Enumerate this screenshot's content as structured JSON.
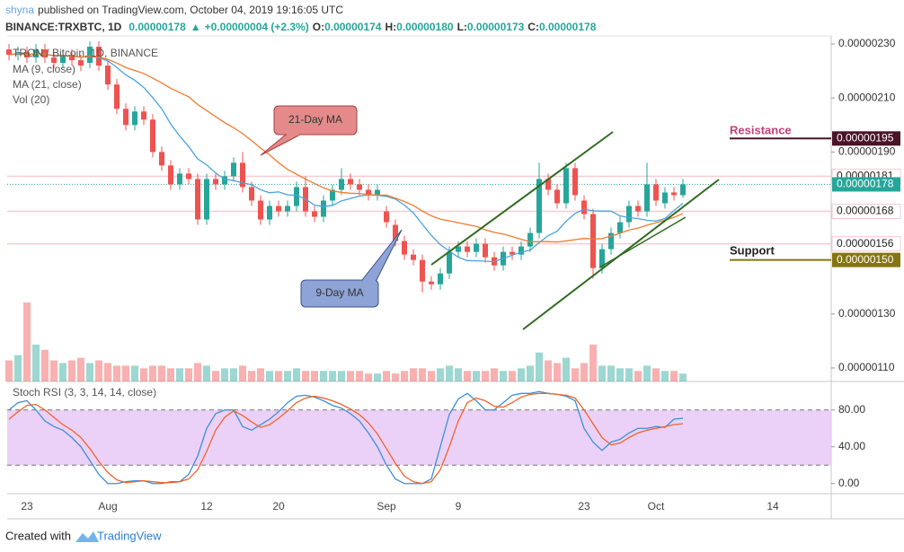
{
  "header": {
    "publisher": "shyna",
    "published": "published on TradingView.com, October 04, 2019 19:16:05 UTC",
    "symbol": "BINANCE:TRXBTC, 1D",
    "last": "0.00000178",
    "arrow": "▲",
    "change": "+0.00000004 (+2.3%)",
    "o_label": "O:",
    "o": "0.00000174",
    "h_label": "H:",
    "h": "0.00000180",
    "l_label": "L:",
    "l": "0.00000173",
    "c_label": "C:",
    "c": "0.00000178"
  },
  "footer": {
    "created": "Created with",
    "brand": "TradingView"
  },
  "chart_data": [
    {
      "type": "candlestick",
      "title": "TRON / Bitcoin, 1D, BINANCE",
      "up_color": "#26a69a",
      "down_color": "#ef5350",
      "categories": [
        null,
        null,
        "23",
        null,
        null,
        null,
        null,
        null,
        null,
        null,
        null,
        "Aug",
        null,
        null,
        null,
        null,
        null,
        null,
        null,
        null,
        null,
        null,
        "12",
        null,
        null,
        null,
        null,
        null,
        null,
        null,
        "20",
        null,
        null,
        null,
        null,
        null,
        null,
        null,
        null,
        null,
        null,
        null,
        "Sep",
        null,
        null,
        null,
        null,
        null,
        null,
        null,
        "9",
        null,
        null,
        null,
        null,
        null,
        null,
        null,
        null,
        null,
        null,
        null,
        null,
        null,
        "23",
        null,
        null,
        null,
        null,
        null,
        null,
        null,
        "Oct",
        null,
        null,
        null,
        null,
        null,
        null,
        null,
        null,
        null,
        null,
        null,
        null,
        "14"
      ],
      "open": [
        2.28e-06,
        2.26e-06,
        2.27e-06,
        2.25e-06,
        2.28e-06,
        2.25e-06,
        2.23e-06,
        2.26e-06,
        2.24e-06,
        2.23e-06,
        2.29e-06,
        2.22e-06,
        2.15e-06,
        2.06e-06,
        2e-06,
        2.05e-06,
        2.02e-06,
        1.9e-06,
        1.85e-06,
        1.78e-06,
        1.82e-06,
        1.8e-06,
        1.65e-06,
        1.8e-06,
        1.78e-06,
        1.81e-06,
        1.86e-06,
        1.77e-06,
        1.72e-06,
        1.65e-06,
        1.7e-06,
        1.68e-06,
        1.7e-06,
        1.77e-06,
        1.68e-06,
        1.66e-06,
        1.72e-06,
        1.76e-06,
        1.8e-06,
        1.78e-06,
        1.76e-06,
        1.74e-06,
        1.68e-06,
        1.63e-06,
        1.57e-06,
        1.52e-06,
        1.5e-06,
        1.42e-06,
        1.41e-06,
        1.45e-06,
        1.53e-06,
        1.55e-06,
        1.53e-06,
        1.56e-06,
        1.51e-06,
        1.48e-06,
        1.53e-06,
        1.52e-06,
        1.55e-06,
        1.6e-06,
        1.8e-06,
        1.76e-06,
        1.71e-06,
        1.84e-06,
        1.72e-06,
        1.67e-06,
        1.47e-06,
        1.54e-06,
        1.6e-06,
        1.64e-06,
        1.7e-06,
        1.68e-06,
        1.78e-06,
        1.71e-06,
        1.75e-06,
        1.74e-06,
        null,
        null,
        null,
        null,
        null,
        null,
        null,
        null,
        null,
        null
      ],
      "high": [
        2.3e-06,
        2.29e-06,
        2.29e-06,
        2.3e-06,
        2.3e-06,
        2.27e-06,
        2.28e-06,
        2.28e-06,
        2.26e-06,
        2.31e-06,
        2.31e-06,
        2.24e-06,
        2.17e-06,
        2.08e-06,
        2.07e-06,
        2.07e-06,
        2.04e-06,
        1.92e-06,
        1.87e-06,
        1.84e-06,
        1.84e-06,
        1.82e-06,
        1.82e-06,
        1.82e-06,
        1.83e-06,
        1.88e-06,
        1.9e-06,
        1.79e-06,
        1.74e-06,
        1.72e-06,
        1.72e-06,
        1.72e-06,
        1.79e-06,
        1.81e-06,
        1.7e-06,
        1.74e-06,
        1.78e-06,
        1.84e-06,
        1.82e-06,
        1.8e-06,
        1.78e-06,
        1.78e-06,
        1.7e-06,
        1.65e-06,
        1.59e-06,
        1.54e-06,
        1.52e-06,
        1.44e-06,
        1.47e-06,
        1.55e-06,
        1.57e-06,
        1.57e-06,
        1.58e-06,
        1.58e-06,
        1.53e-06,
        1.55e-06,
        1.55e-06,
        1.57e-06,
        1.62e-06,
        1.86e-06,
        1.82e-06,
        1.78e-06,
        1.86e-06,
        1.86e-06,
        1.74e-06,
        1.69e-06,
        1.56e-06,
        1.62e-06,
        1.66e-06,
        1.72e-06,
        1.72e-06,
        1.86e-06,
        1.8e-06,
        1.77e-06,
        1.77e-06,
        1.8e-06,
        null,
        null,
        null,
        null,
        null,
        null,
        null,
        null,
        null,
        null
      ],
      "low": [
        2.24e-06,
        2.24e-06,
        2.23e-06,
        2.23e-06,
        2.23e-06,
        2.21e-06,
        2.21e-06,
        2.22e-06,
        2.2e-06,
        2.21e-06,
        2.2e-06,
        2.13e-06,
        2.04e-06,
        1.98e-06,
        1.98e-06,
        2e-06,
        1.88e-06,
        1.83e-06,
        1.76e-06,
        1.76e-06,
        1.78e-06,
        1.63e-06,
        1.63e-06,
        1.76e-06,
        1.76e-06,
        1.79e-06,
        1.75e-06,
        1.7e-06,
        1.63e-06,
        1.63e-06,
        1.66e-06,
        1.66e-06,
        1.68e-06,
        1.66e-06,
        1.64e-06,
        1.64e-06,
        1.7e-06,
        1.74e-06,
        1.76e-06,
        1.74e-06,
        1.72e-06,
        1.72e-06,
        1.62e-06,
        1.55e-06,
        1.5e-06,
        1.48e-06,
        1.38e-06,
        1.39e-06,
        1.39e-06,
        1.43e-06,
        1.51e-06,
        1.51e-06,
        1.51e-06,
        1.49e-06,
        1.46e-06,
        1.46e-06,
        1.5e-06,
        1.5e-06,
        1.53e-06,
        1.58e-06,
        1.74e-06,
        1.69e-06,
        1.69e-06,
        1.72e-06,
        1.65e-06,
        1.43e-06,
        1.45e-06,
        1.52e-06,
        1.58e-06,
        1.62e-06,
        1.66e-06,
        1.66e-06,
        1.7e-06,
        1.69e-06,
        1.72e-06,
        1.73e-06,
        null,
        null,
        null,
        null,
        null,
        null,
        null,
        null,
        null,
        null
      ],
      "close": [
        2.26e-06,
        2.27e-06,
        2.25e-06,
        2.28e-06,
        2.25e-06,
        2.23e-06,
        2.26e-06,
        2.24e-06,
        2.22e-06,
        2.29e-06,
        2.22e-06,
        2.15e-06,
        2.06e-06,
        2e-06,
        2.05e-06,
        2.02e-06,
        1.9e-06,
        1.85e-06,
        1.78e-06,
        1.82e-06,
        1.8e-06,
        1.65e-06,
        1.8e-06,
        1.78e-06,
        1.81e-06,
        1.86e-06,
        1.77e-06,
        1.72e-06,
        1.65e-06,
        1.7e-06,
        1.68e-06,
        1.7e-06,
        1.77e-06,
        1.68e-06,
        1.66e-06,
        1.72e-06,
        1.76e-06,
        1.8e-06,
        1.78e-06,
        1.76e-06,
        1.74e-06,
        1.76e-06,
        1.64e-06,
        1.57e-06,
        1.52e-06,
        1.5e-06,
        1.42e-06,
        1.41e-06,
        1.45e-06,
        1.53e-06,
        1.55e-06,
        1.53e-06,
        1.56e-06,
        1.51e-06,
        1.48e-06,
        1.53e-06,
        1.52e-06,
        1.55e-06,
        1.6e-06,
        1.8e-06,
        1.76e-06,
        1.71e-06,
        1.84e-06,
        1.74e-06,
        1.67e-06,
        1.47e-06,
        1.54e-06,
        1.6e-06,
        1.64e-06,
        1.7e-06,
        1.68e-06,
        1.78e-06,
        1.72e-06,
        1.75e-06,
        1.74e-06,
        1.78e-06,
        null,
        null,
        null,
        null,
        null,
        null,
        null,
        null,
        null,
        null
      ],
      "volume": [
        8,
        10,
        30,
        14,
        12,
        8,
        7,
        8,
        9,
        7,
        8,
        7,
        6,
        6,
        6,
        5,
        6,
        6,
        5,
        5,
        5,
        7,
        6,
        4,
        5,
        5,
        6,
        4,
        5,
        4,
        4,
        4,
        5,
        4,
        4,
        4,
        4,
        4,
        4,
        4,
        3,
        3,
        4,
        3,
        4,
        5,
        5,
        4,
        5,
        6,
        5,
        4,
        4,
        4,
        5,
        4,
        4,
        5,
        6,
        11,
        8,
        7,
        9,
        5,
        7,
        14,
        6,
        6,
        5,
        5,
        4,
        6,
        5,
        4,
        4,
        3,
        null,
        null,
        null,
        null,
        null,
        null,
        null,
        null,
        null,
        null
      ],
      "volume_label": "Vol (20)",
      "ma": [
        {
          "name": "MA (9, close)",
          "period": 9,
          "color": "#4aa3df"
        },
        {
          "name": "MA (21, close)",
          "period": 21,
          "color": "#f07a30"
        }
      ],
      "ylim": [
        1.05e-06,
        2.33e-06
      ],
      "yticks": [
        {
          "value": 2.3e-06,
          "label": "0.00000230"
        },
        {
          "value": 2.1e-06,
          "label": "0.00000210"
        },
        {
          "value": 1.9e-06,
          "label": "0.00000190"
        },
        {
          "value": 1.3e-06,
          "label": "0.00000130"
        },
        {
          "value": 1.1e-06,
          "label": "0.00000110"
        }
      ],
      "price_lines": [
        {
          "value": 1.95e-06,
          "label": "0.00000195",
          "color": "#4a1328",
          "text_color": "#ffffff",
          "line": "short"
        },
        {
          "value": 1.81e-06,
          "label": "0.00000181",
          "color": "#f6cbd1",
          "text_color": "#222222",
          "line": "full"
        },
        {
          "value": 1.78e-06,
          "label": "0.00000178",
          "color": "#26a69a",
          "text_color": "#ffffff",
          "line": "dotted"
        },
        {
          "value": 1.68e-06,
          "label": "0.00000168",
          "color": "#f6cbd1",
          "text_color": "#222222",
          "line": "full"
        },
        {
          "value": 1.56e-06,
          "label": "0.00000156",
          "color": "#f6cbd1",
          "text_color": "#222222",
          "line": "full"
        },
        {
          "value": 1.5e-06,
          "label": "0.00000150",
          "color": "#857511",
          "text_color": "#ffffff",
          "line": "short"
        }
      ],
      "annotations": [
        "21-Day MA",
        "9-Day MA",
        "Resistance",
        "Support"
      ]
    },
    {
      "type": "line",
      "title": "Stoch RSI (3, 3, 14, 14, close)",
      "band": [
        20,
        80
      ],
      "band_color": "#e6c6f5",
      "series": [
        {
          "color": "#3d8fd6",
          "values": [
            80,
            88,
            90,
            80,
            68,
            62,
            58,
            50,
            40,
            25,
            10,
            0,
            0,
            2,
            3,
            3,
            0,
            0,
            2,
            2,
            10,
            30,
            60,
            76,
            80,
            80,
            62,
            58,
            64,
            70,
            78,
            88,
            95,
            96,
            94,
            90,
            85,
            82,
            76,
            68,
            55,
            40,
            20,
            5,
            0,
            0,
            0,
            5,
            40,
            75,
            92,
            98,
            90,
            80,
            80,
            88,
            96,
            98,
            98,
            100,
            98,
            97,
            95,
            90,
            60,
            45,
            36,
            45,
            48,
            55,
            60,
            60,
            62,
            61,
            70,
            71,
            null,
            null,
            null,
            null,
            null,
            null,
            null,
            null,
            null,
            null
          ]
        },
        {
          "color": "#f0642d",
          "values": [
            70,
            78,
            85,
            86,
            80,
            72,
            64,
            58,
            50,
            38,
            24,
            12,
            4,
            1,
            2,
            3,
            2,
            1,
            1,
            2,
            5,
            15,
            35,
            58,
            72,
            79,
            74,
            67,
            61,
            64,
            71,
            79,
            88,
            93,
            95,
            93,
            90,
            86,
            81,
            75,
            66,
            54,
            38,
            22,
            8,
            2,
            0,
            2,
            15,
            40,
            68,
            88,
            93,
            90,
            84,
            83,
            88,
            94,
            97,
            98,
            98,
            97,
            96,
            93,
            80,
            65,
            50,
            42,
            44,
            50,
            55,
            58,
            60,
            62,
            64,
            65,
            null,
            null,
            null,
            null,
            null,
            null,
            null,
            null,
            null,
            null
          ]
        }
      ],
      "ylim": [
        -11,
        111
      ],
      "yticks": [
        {
          "value": 80,
          "label": "80.00"
        },
        {
          "value": 40,
          "label": "40.00"
        },
        {
          "value": 0,
          "label": "0.00"
        }
      ]
    }
  ]
}
